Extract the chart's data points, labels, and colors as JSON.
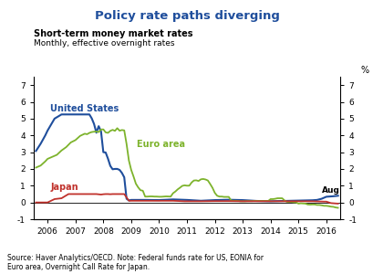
{
  "title": "Policy rate paths diverging",
  "subtitle1": "Short-term money market rates",
  "subtitle2": "Monthly, effective overnight rates",
  "ylabel_right": "%",
  "source_text": "Source: Haver Analytics/OECD. Note: Federal funds rate for US, EONIA for\nEuro area, Overnight Call Rate for Japan.",
  "aug_label": "Aug",
  "colors": {
    "us": "#1f4e9c",
    "euro": "#7db32c",
    "japan": "#c0312b"
  },
  "title_color": "#1f4e9c",
  "xlim": [
    2005.5,
    2016.5
  ],
  "ylim": [
    -1,
    7.5
  ],
  "yticks": [
    -1,
    0,
    1,
    2,
    3,
    4,
    5,
    6,
    7
  ],
  "xticks": [
    2006,
    2007,
    2008,
    2009,
    2010,
    2011,
    2012,
    2013,
    2014,
    2015,
    2016
  ],
  "us_data": [
    [
      2005.583,
      3.07
    ],
    [
      2005.75,
      3.5
    ],
    [
      2005.917,
      4.0
    ],
    [
      2006.0,
      4.29
    ],
    [
      2006.25,
      5.0
    ],
    [
      2006.5,
      5.25
    ],
    [
      2006.75,
      5.25
    ],
    [
      2007.0,
      5.25
    ],
    [
      2007.25,
      5.25
    ],
    [
      2007.5,
      5.25
    ],
    [
      2007.583,
      5.02
    ],
    [
      2007.667,
      4.68
    ],
    [
      2007.75,
      4.16
    ],
    [
      2007.833,
      4.55
    ],
    [
      2007.917,
      4.24
    ],
    [
      2008.0,
      3.0
    ],
    [
      2008.083,
      2.98
    ],
    [
      2008.167,
      2.61
    ],
    [
      2008.25,
      2.18
    ],
    [
      2008.333,
      1.98
    ],
    [
      2008.417,
      2.0
    ],
    [
      2008.5,
      2.0
    ],
    [
      2008.583,
      1.94
    ],
    [
      2008.667,
      1.76
    ],
    [
      2008.75,
      1.5
    ],
    [
      2008.833,
      0.22
    ],
    [
      2008.917,
      0.12
    ],
    [
      2009.0,
      0.15
    ],
    [
      2009.5,
      0.15
    ],
    [
      2010.0,
      0.14
    ],
    [
      2010.5,
      0.18
    ],
    [
      2011.0,
      0.15
    ],
    [
      2011.5,
      0.1
    ],
    [
      2012.0,
      0.14
    ],
    [
      2012.5,
      0.16
    ],
    [
      2013.0,
      0.14
    ],
    [
      2013.5,
      0.09
    ],
    [
      2014.0,
      0.07
    ],
    [
      2014.5,
      0.09
    ],
    [
      2015.0,
      0.11
    ],
    [
      2015.5,
      0.13
    ],
    [
      2015.667,
      0.15
    ],
    [
      2015.833,
      0.22
    ],
    [
      2016.0,
      0.34
    ],
    [
      2016.25,
      0.37
    ],
    [
      2016.42,
      0.4
    ]
  ],
  "euro_data": [
    [
      2005.583,
      2.08
    ],
    [
      2005.75,
      2.2
    ],
    [
      2005.917,
      2.45
    ],
    [
      2006.0,
      2.6
    ],
    [
      2006.167,
      2.72
    ],
    [
      2006.333,
      2.84
    ],
    [
      2006.5,
      3.1
    ],
    [
      2006.667,
      3.3
    ],
    [
      2006.833,
      3.58
    ],
    [
      2007.0,
      3.72
    ],
    [
      2007.167,
      3.97
    ],
    [
      2007.333,
      4.1
    ],
    [
      2007.417,
      4.07
    ],
    [
      2007.5,
      4.15
    ],
    [
      2007.583,
      4.2
    ],
    [
      2007.667,
      4.22
    ],
    [
      2007.75,
      4.23
    ],
    [
      2007.833,
      4.2
    ],
    [
      2007.917,
      4.35
    ],
    [
      2008.0,
      4.36
    ],
    [
      2008.083,
      4.18
    ],
    [
      2008.167,
      4.15
    ],
    [
      2008.25,
      4.27
    ],
    [
      2008.333,
      4.33
    ],
    [
      2008.417,
      4.27
    ],
    [
      2008.5,
      4.43
    ],
    [
      2008.583,
      4.28
    ],
    [
      2008.667,
      4.32
    ],
    [
      2008.75,
      4.3
    ],
    [
      2008.833,
      3.49
    ],
    [
      2008.917,
      2.5
    ],
    [
      2009.0,
      1.94
    ],
    [
      2009.083,
      1.55
    ],
    [
      2009.167,
      1.12
    ],
    [
      2009.25,
      0.9
    ],
    [
      2009.333,
      0.73
    ],
    [
      2009.417,
      0.7
    ],
    [
      2009.5,
      0.35
    ],
    [
      2009.583,
      0.35
    ],
    [
      2009.667,
      0.36
    ],
    [
      2009.75,
      0.36
    ],
    [
      2009.833,
      0.35
    ],
    [
      2009.917,
      0.35
    ],
    [
      2010.0,
      0.34
    ],
    [
      2010.083,
      0.34
    ],
    [
      2010.25,
      0.36
    ],
    [
      2010.417,
      0.35
    ],
    [
      2010.5,
      0.55
    ],
    [
      2010.583,
      0.65
    ],
    [
      2010.667,
      0.78
    ],
    [
      2010.75,
      0.88
    ],
    [
      2010.833,
      0.99
    ],
    [
      2010.917,
      1.02
    ],
    [
      2011.0,
      1.0
    ],
    [
      2011.083,
      1.0
    ],
    [
      2011.167,
      1.19
    ],
    [
      2011.25,
      1.31
    ],
    [
      2011.333,
      1.32
    ],
    [
      2011.417,
      1.28
    ],
    [
      2011.5,
      1.38
    ],
    [
      2011.583,
      1.4
    ],
    [
      2011.667,
      1.37
    ],
    [
      2011.75,
      1.31
    ],
    [
      2011.833,
      1.1
    ],
    [
      2011.917,
      0.87
    ],
    [
      2012.0,
      0.57
    ],
    [
      2012.083,
      0.4
    ],
    [
      2012.167,
      0.35
    ],
    [
      2012.25,
      0.35
    ],
    [
      2012.333,
      0.33
    ],
    [
      2012.417,
      0.33
    ],
    [
      2012.5,
      0.33
    ],
    [
      2012.583,
      0.12
    ],
    [
      2012.667,
      0.1
    ],
    [
      2012.75,
      0.1
    ],
    [
      2012.833,
      0.09
    ],
    [
      2012.917,
      0.07
    ],
    [
      2013.0,
      0.07
    ],
    [
      2013.083,
      0.07
    ],
    [
      2013.167,
      0.08
    ],
    [
      2013.25,
      0.08
    ],
    [
      2013.333,
      0.08
    ],
    [
      2013.417,
      0.09
    ],
    [
      2013.5,
      0.09
    ],
    [
      2013.583,
      0.09
    ],
    [
      2013.667,
      0.09
    ],
    [
      2013.75,
      0.09
    ],
    [
      2013.833,
      0.09
    ],
    [
      2013.917,
      0.09
    ],
    [
      2014.0,
      0.2
    ],
    [
      2014.083,
      0.2
    ],
    [
      2014.167,
      0.22
    ],
    [
      2014.25,
      0.25
    ],
    [
      2014.333,
      0.25
    ],
    [
      2014.417,
      0.25
    ],
    [
      2014.5,
      0.12
    ],
    [
      2014.583,
      0.04
    ],
    [
      2014.667,
      0.03
    ],
    [
      2014.75,
      0.03
    ],
    [
      2014.833,
      0.01
    ],
    [
      2014.917,
      0.0
    ],
    [
      2015.0,
      -0.07
    ],
    [
      2015.083,
      -0.05
    ],
    [
      2015.167,
      -0.06
    ],
    [
      2015.25,
      -0.07
    ],
    [
      2015.333,
      -0.12
    ],
    [
      2015.417,
      -0.13
    ],
    [
      2015.5,
      -0.12
    ],
    [
      2015.583,
      -0.12
    ],
    [
      2015.667,
      -0.15
    ],
    [
      2015.75,
      -0.15
    ],
    [
      2015.833,
      -0.17
    ],
    [
      2015.917,
      -0.2
    ],
    [
      2016.0,
      -0.2
    ],
    [
      2016.083,
      -0.22
    ],
    [
      2016.167,
      -0.25
    ],
    [
      2016.25,
      -0.26
    ],
    [
      2016.333,
      -0.3
    ],
    [
      2016.417,
      -0.32
    ]
  ],
  "japan_data": [
    [
      2005.583,
      0.0
    ],
    [
      2005.75,
      0.0
    ],
    [
      2005.917,
      0.0
    ],
    [
      2006.0,
      0.0
    ],
    [
      2006.25,
      0.2
    ],
    [
      2006.5,
      0.25
    ],
    [
      2006.75,
      0.5
    ],
    [
      2007.0,
      0.5
    ],
    [
      2007.25,
      0.5
    ],
    [
      2007.5,
      0.5
    ],
    [
      2007.75,
      0.5
    ],
    [
      2007.917,
      0.47
    ],
    [
      2008.0,
      0.49
    ],
    [
      2008.083,
      0.5
    ],
    [
      2008.167,
      0.5
    ],
    [
      2008.25,
      0.49
    ],
    [
      2008.333,
      0.5
    ],
    [
      2008.417,
      0.5
    ],
    [
      2008.5,
      0.5
    ],
    [
      2008.583,
      0.5
    ],
    [
      2008.667,
      0.5
    ],
    [
      2008.75,
      0.5
    ],
    [
      2008.833,
      0.3
    ],
    [
      2008.917,
      0.1
    ],
    [
      2009.0,
      0.1
    ],
    [
      2009.5,
      0.1
    ],
    [
      2010.0,
      0.1
    ],
    [
      2010.5,
      0.1
    ],
    [
      2010.917,
      0.07
    ],
    [
      2011.0,
      0.07
    ],
    [
      2011.5,
      0.07
    ],
    [
      2012.0,
      0.08
    ],
    [
      2012.5,
      0.08
    ],
    [
      2013.0,
      0.07
    ],
    [
      2013.5,
      0.07
    ],
    [
      2014.0,
      0.07
    ],
    [
      2014.5,
      0.07
    ],
    [
      2015.0,
      0.07
    ],
    [
      2015.5,
      0.07
    ],
    [
      2015.917,
      0.05
    ],
    [
      2016.0,
      0.05
    ],
    [
      2016.167,
      -0.04
    ],
    [
      2016.333,
      -0.06
    ],
    [
      2016.42,
      -0.07
    ]
  ]
}
